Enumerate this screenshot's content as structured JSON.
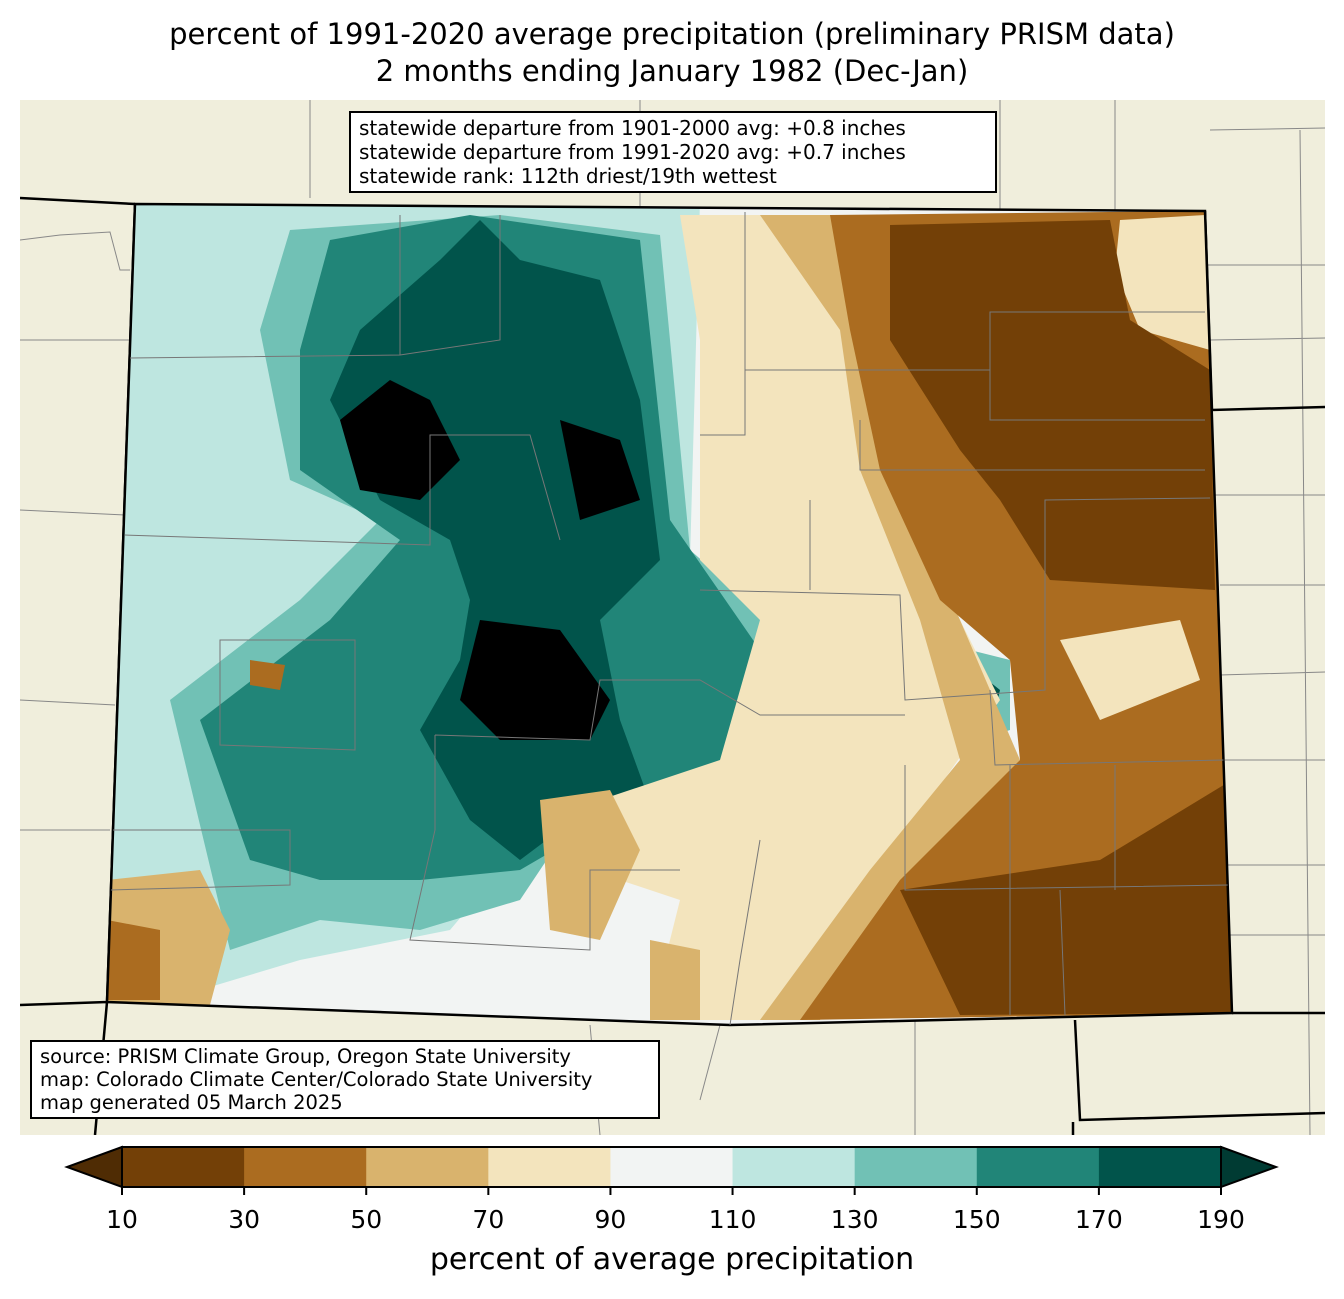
{
  "title": {
    "line1": "percent of 1991-2020 average precipitation (preliminary PRISM data)",
    "line2": "2 months ending January 1982 (Dec-Jan)"
  },
  "info_box": {
    "line1": "statewide departure from 1901-2000 avg: +0.8 inches",
    "line2": "statewide departure from 1991-2020 avg: +0.7 inches",
    "line3": "statewide rank: 112th driest/19th wettest"
  },
  "source_box": {
    "line1": "source: PRISM Climate Group, Oregon State University",
    "line2": "map: Colorado Climate Center/Colorado State University",
    "line3": "map generated 05 March 2025"
  },
  "colorbar": {
    "label": "percent of average precipitation",
    "ticks": [
      "10",
      "30",
      "50",
      "70",
      "90",
      "110",
      "130",
      "150",
      "170",
      "190"
    ],
    "colors": [
      "#734007",
      "#ab6c20",
      "#d9b36d",
      "#f3e4bd",
      "#f2f4f3",
      "#bee6e0",
      "#71c1b5",
      "#218578",
      "#01544b"
    ],
    "under_color": "#4f2c04",
    "over_color": "#003b33"
  },
  "land_color": "#f0eedc"
}
